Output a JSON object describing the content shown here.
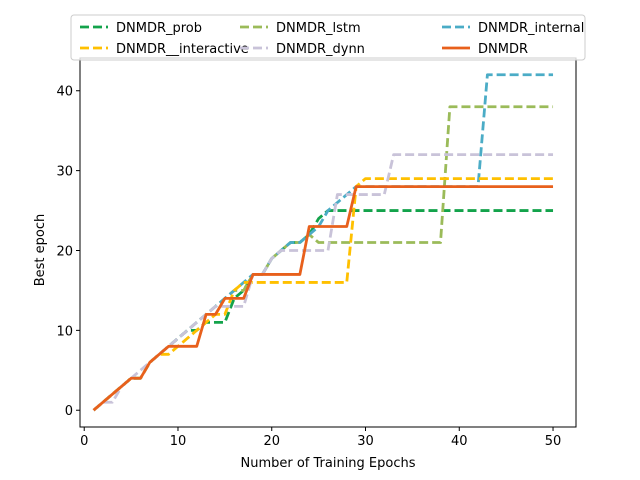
{
  "chart_data": {
    "type": "line",
    "title": "",
    "xlabel": "Number of Training Epochs",
    "ylabel": "Best epoch",
    "xlim": [
      -0.45,
      52.45
    ],
    "ylim": [
      -2.1,
      44.1
    ],
    "xticks": [
      0,
      10,
      20,
      30,
      40,
      50
    ],
    "yticks": [
      0,
      10,
      20,
      30,
      40
    ],
    "xtick_labels": [
      "0",
      "10",
      "20",
      "30",
      "40",
      "50"
    ],
    "ytick_labels": [
      "0",
      "10",
      "20",
      "30",
      "40"
    ],
    "grid": false,
    "legend_position": "top",
    "series": [
      {
        "name": "DNMDR_prob",
        "color": "#13a34b",
        "style": "dashed",
        "points": [
          [
            1,
            0
          ],
          [
            5,
            4
          ],
          [
            6,
            4
          ],
          [
            7,
            6
          ],
          [
            8,
            7
          ],
          [
            9,
            8
          ],
          [
            10,
            9
          ],
          [
            11,
            10
          ],
          [
            12,
            10
          ],
          [
            13,
            11
          ],
          [
            14,
            11
          ],
          [
            15,
            11
          ],
          [
            16,
            14
          ],
          [
            17,
            15
          ],
          [
            18,
            17
          ],
          [
            19,
            17
          ],
          [
            20,
            19
          ],
          [
            21,
            20
          ],
          [
            22,
            21
          ],
          [
            23,
            21
          ],
          [
            24,
            22
          ],
          [
            25,
            24
          ],
          [
            26,
            25
          ],
          [
            30,
            25
          ],
          [
            35,
            25
          ],
          [
            40,
            25
          ],
          [
            45,
            25
          ],
          [
            50,
            25
          ]
        ]
      },
      {
        "name": "DNMDR_lstm",
        "color": "#9bbb59",
        "style": "dashed",
        "points": [
          [
            1,
            0
          ],
          [
            5,
            4
          ],
          [
            6,
            4
          ],
          [
            7,
            6
          ],
          [
            8,
            7
          ],
          [
            9,
            8
          ],
          [
            10,
            9
          ],
          [
            11,
            10
          ],
          [
            12,
            11
          ],
          [
            13,
            12
          ],
          [
            14,
            13
          ],
          [
            15,
            14
          ],
          [
            16,
            15
          ],
          [
            17,
            15
          ],
          [
            18,
            17
          ],
          [
            19,
            17
          ],
          [
            20,
            19
          ],
          [
            21,
            20
          ],
          [
            22,
            21
          ],
          [
            23,
            21
          ],
          [
            24,
            22
          ],
          [
            25,
            21
          ],
          [
            30,
            21
          ],
          [
            35,
            21
          ],
          [
            38,
            21
          ],
          [
            39,
            38
          ],
          [
            45,
            38
          ],
          [
            50,
            38
          ]
        ]
      },
      {
        "name": "DNMDR_internal",
        "color": "#4bacc6",
        "style": "dashed",
        "points": [
          [
            1,
            0
          ],
          [
            5,
            4
          ],
          [
            6,
            4
          ],
          [
            7,
            6
          ],
          [
            8,
            7
          ],
          [
            9,
            8
          ],
          [
            10,
            9
          ],
          [
            11,
            10
          ],
          [
            12,
            11
          ],
          [
            13,
            12
          ],
          [
            14,
            13
          ],
          [
            15,
            14
          ],
          [
            16,
            15
          ],
          [
            17,
            16
          ],
          [
            18,
            17
          ],
          [
            19,
            17
          ],
          [
            20,
            19
          ],
          [
            21,
            20
          ],
          [
            22,
            21
          ],
          [
            23,
            21
          ],
          [
            24,
            22
          ],
          [
            25,
            23
          ],
          [
            26,
            25
          ],
          [
            27,
            26
          ],
          [
            28,
            27
          ],
          [
            29,
            28
          ],
          [
            30,
            28
          ],
          [
            35,
            28
          ],
          [
            40,
            28
          ],
          [
            42,
            28
          ],
          [
            43,
            42
          ],
          [
            50,
            42
          ]
        ]
      },
      {
        "name": "DNMDR__interactive",
        "color": "#ffc000",
        "style": "dashed",
        "points": [
          [
            1,
            0
          ],
          [
            5,
            4
          ],
          [
            6,
            4
          ],
          [
            7,
            6
          ],
          [
            8,
            7
          ],
          [
            9,
            7
          ],
          [
            10,
            8
          ],
          [
            11,
            9
          ],
          [
            12,
            10
          ],
          [
            13,
            11
          ],
          [
            14,
            12
          ],
          [
            15,
            12
          ],
          [
            16,
            15
          ],
          [
            17,
            16
          ],
          [
            18,
            16
          ],
          [
            20,
            16
          ],
          [
            25,
            16
          ],
          [
            27,
            16
          ],
          [
            28,
            16
          ],
          [
            29,
            28
          ],
          [
            30,
            29
          ],
          [
            35,
            29
          ],
          [
            40,
            29
          ],
          [
            45,
            29
          ],
          [
            50,
            29
          ]
        ]
      },
      {
        "name": "DNMDR_dynn",
        "color": "#c9c3d9",
        "style": "dashed",
        "points": [
          [
            1,
            0
          ],
          [
            2,
            1
          ],
          [
            3,
            1
          ],
          [
            4,
            3
          ],
          [
            5,
            4
          ],
          [
            6,
            5
          ],
          [
            7,
            6
          ],
          [
            8,
            7
          ],
          [
            9,
            8
          ],
          [
            10,
            9
          ],
          [
            11,
            10
          ],
          [
            12,
            11
          ],
          [
            13,
            12
          ],
          [
            14,
            13
          ],
          [
            15,
            13
          ],
          [
            16,
            13
          ],
          [
            17,
            13
          ],
          [
            18,
            17
          ],
          [
            19,
            17
          ],
          [
            20,
            19
          ],
          [
            21,
            20
          ],
          [
            22,
            20
          ],
          [
            25,
            20
          ],
          [
            26,
            20
          ],
          [
            27,
            27
          ],
          [
            28,
            27
          ],
          [
            29,
            27
          ],
          [
            30,
            27
          ],
          [
            32,
            27
          ],
          [
            33,
            32
          ],
          [
            40,
            32
          ],
          [
            45,
            32
          ],
          [
            50,
            32
          ]
        ]
      },
      {
        "name": "DNMDR",
        "color": "#e8601c",
        "style": "solid",
        "points": [
          [
            1,
            0
          ],
          [
            5,
            4
          ],
          [
            6,
            4
          ],
          [
            7,
            6
          ],
          [
            8,
            7
          ],
          [
            9,
            8
          ],
          [
            10,
            8
          ],
          [
            11,
            8
          ],
          [
            12,
            8
          ],
          [
            13,
            12
          ],
          [
            14,
            12
          ],
          [
            15,
            14
          ],
          [
            16,
            14
          ],
          [
            17,
            14
          ],
          [
            18,
            17
          ],
          [
            19,
            17
          ],
          [
            20,
            17
          ],
          [
            23,
            17
          ],
          [
            24,
            23
          ],
          [
            25,
            23
          ],
          [
            27,
            23
          ],
          [
            28,
            23
          ],
          [
            29,
            28
          ],
          [
            30,
            28
          ],
          [
            35,
            28
          ],
          [
            40,
            28
          ],
          [
            45,
            28
          ],
          [
            50,
            28
          ]
        ]
      }
    ]
  }
}
